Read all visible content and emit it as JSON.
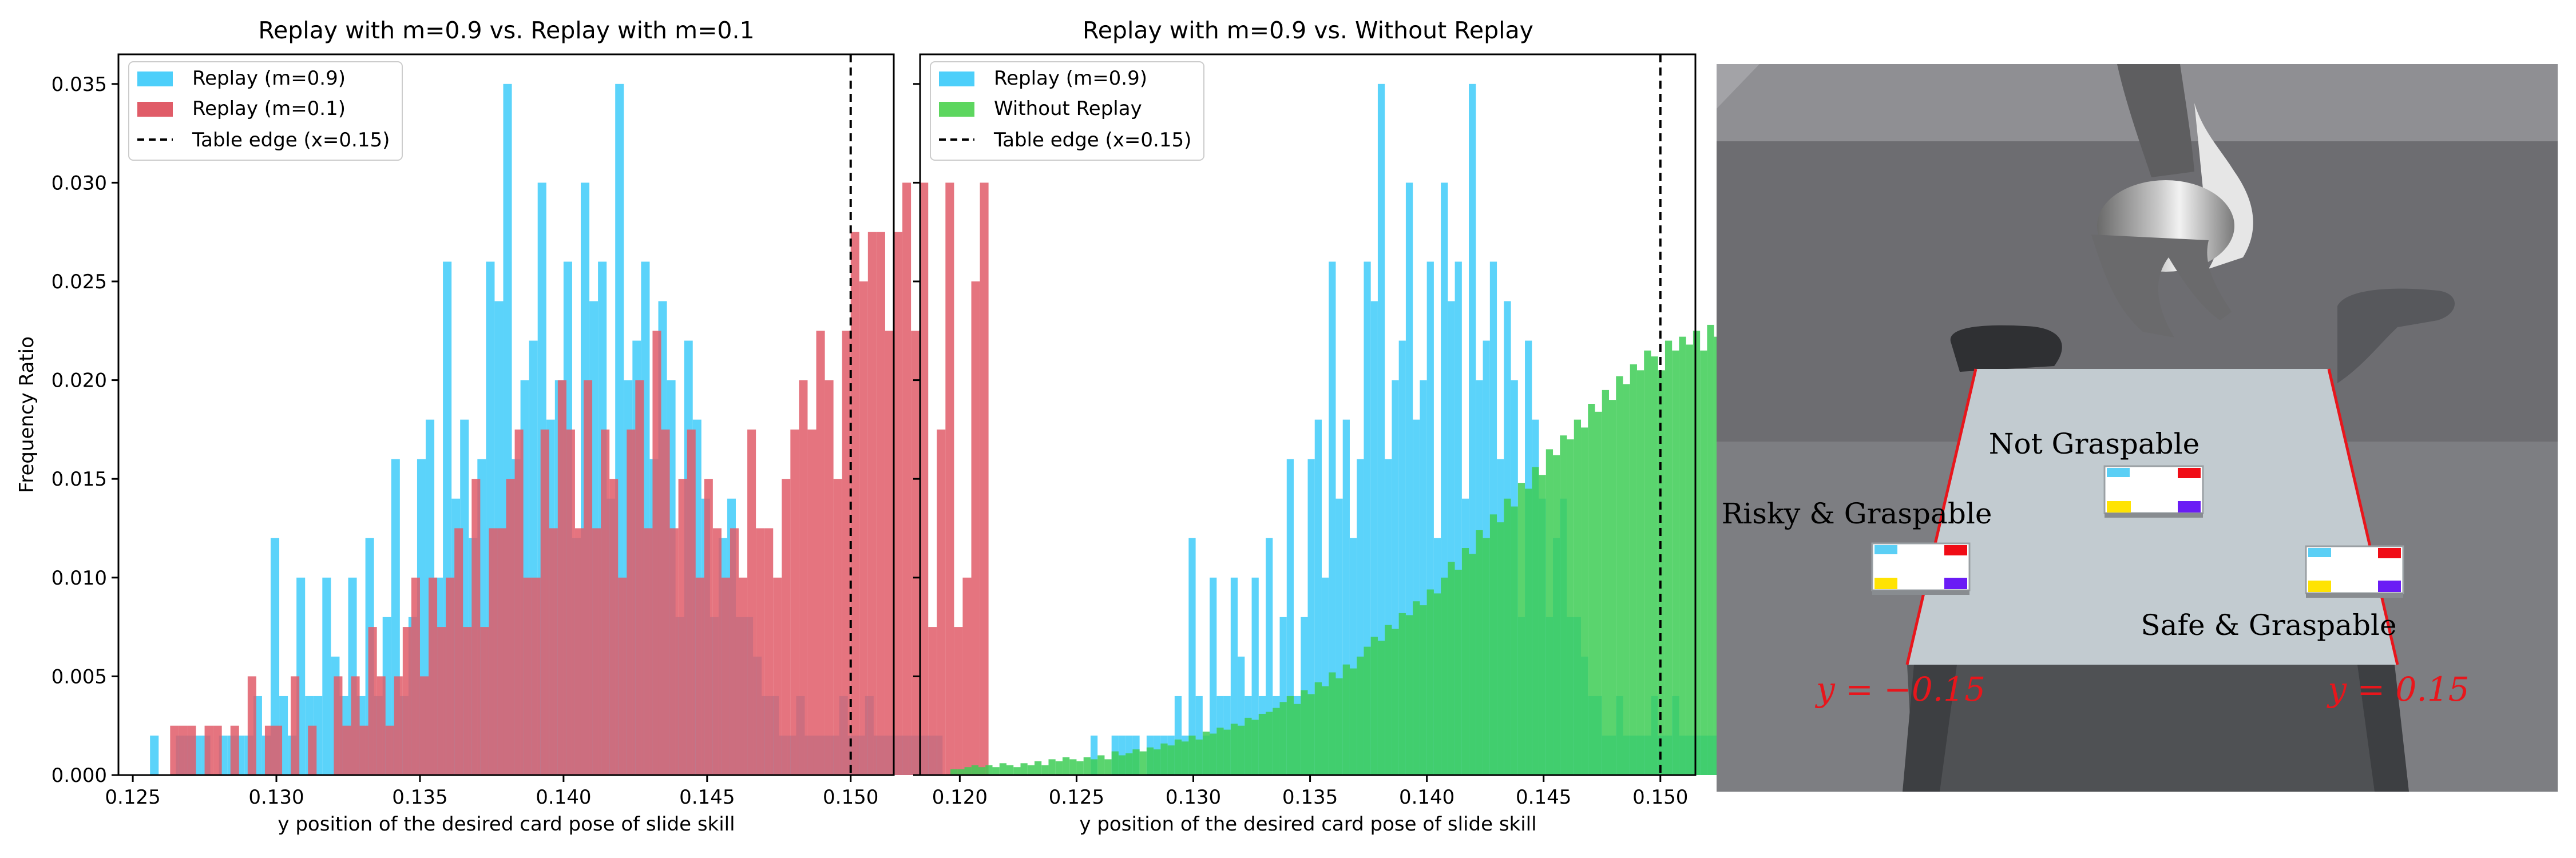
{
  "chart_data": [
    {
      "type": "bar",
      "title": "Replay with m=0.9 vs. Replay with m=0.1",
      "xlabel": "y position of the desired card pose of slide skill",
      "ylabel": "Frequency Ratio",
      "xlim": [
        0.1245,
        0.1515
      ],
      "ylim": [
        0,
        0.0365
      ],
      "xticks": [
        "0.125",
        "0.130",
        "0.135",
        "0.140",
        "0.145",
        "0.150"
      ],
      "yticks": [
        "0.000",
        "0.005",
        "0.010",
        "0.015",
        "0.020",
        "0.025",
        "0.030",
        "0.035"
      ],
      "grid": false,
      "legend_position": "top-left",
      "bin_width": 0.0003,
      "series": [
        {
          "name": "Replay (m=0.9)",
          "color": "#4DCFFA",
          "x_start": 0.1256,
          "values": [
            0.002,
            0,
            0,
            0.002,
            0.002,
            0.002,
            0.002,
            0,
            0.002,
            0.002,
            0.002,
            0.002,
            0.004,
            0.002,
            0.012,
            0.004,
            0.002,
            0.01,
            0.004,
            0.004,
            0.01,
            0.006,
            0.004,
            0.01,
            0.004,
            0.012,
            0.004,
            0.008,
            0.016,
            0.004,
            0.008,
            0.016,
            0.018,
            0.01,
            0.026,
            0.014,
            0.018,
            0.012,
            0.016,
            0.026,
            0.024,
            0.035,
            0.016,
            0.02,
            0.022,
            0.03,
            0.018,
            0.02,
            0.026,
            0.012,
            0.03,
            0.024,
            0.026,
            0.014,
            0.035,
            0.02,
            0.022,
            0.026,
            0.016,
            0.024,
            0.02,
            0.008,
            0.022,
            0.018,
            0.014,
            0.008,
            0.012,
            0.014,
            0.008,
            0.008,
            0.006,
            0.004,
            0.004,
            0.002,
            0.002,
            0.004,
            0.002,
            0.002,
            0.002,
            0.002,
            0.004,
            0.002,
            0.002,
            0.004,
            0.002,
            0.002,
            0.002,
            0.002,
            0.002,
            0.002,
            0.002,
            0.002
          ]
        },
        {
          "name": "Replay (m=0.1)",
          "color": "#E05C68",
          "x_start": 0.1263,
          "values": [
            0.0025,
            0.0025,
            0.0025,
            0,
            0.0025,
            0.0025,
            0,
            0.0025,
            0,
            0.005,
            0,
            0.0025,
            0.0025,
            0,
            0.005,
            0,
            0.0025,
            0,
            0,
            0.005,
            0.0025,
            0.005,
            0.0025,
            0.0075,
            0.005,
            0.0025,
            0.005,
            0.0075,
            0.01,
            0.005,
            0.01,
            0.0075,
            0.01,
            0.0125,
            0.0075,
            0.015,
            0.0075,
            0.0125,
            0.0125,
            0.015,
            0.0175,
            0.01,
            0.01,
            0.0175,
            0.0125,
            0.02,
            0.0175,
            0.0125,
            0.02,
            0.0125,
            0.0175,
            0.015,
            0.01,
            0.0175,
            0.02,
            0.0125,
            0.0225,
            0.0175,
            0.0125,
            0.015,
            0.0175,
            0.01,
            0.015,
            0.0125,
            0.01,
            0.0125,
            0.01,
            0.0175,
            0.0125,
            0.0125,
            0.01,
            0.015,
            0.0175,
            0.02,
            0.0175,
            0.0225,
            0.02,
            0.015,
            0.0225,
            0.0275,
            0.025,
            0.0275,
            0.0275,
            0.0225,
            0.0275,
            0.03,
            0.0225,
            0.03,
            0.0075,
            0.0175,
            0.03,
            0.0075,
            0.01,
            0.025,
            0.03
          ]
        }
      ],
      "annotations": [
        {
          "type": "vline",
          "x": 0.15,
          "style": "dashed",
          "color": "#000000",
          "label": "Table edge (x=0.15)"
        }
      ]
    },
    {
      "type": "bar",
      "title": "Replay with m=0.9 vs. Without Replay",
      "xlabel": "y position of the desired card pose of slide skill",
      "ylabel": "",
      "xlim": [
        0.1183,
        0.1515
      ],
      "ylim": [
        0,
        0.0365
      ],
      "xticks": [
        "0.120",
        "0.125",
        "0.130",
        "0.135",
        "0.140",
        "0.145",
        "0.150"
      ],
      "grid": false,
      "legend_position": "top-left",
      "bin_width": 0.0003,
      "series": [
        {
          "name": "Replay (m=0.9)",
          "color": "#4DCFFA",
          "x_start": 0.1256,
          "values": [
            0.002,
            0,
            0,
            0.002,
            0.002,
            0.002,
            0.002,
            0,
            0.002,
            0.002,
            0.002,
            0.002,
            0.004,
            0.002,
            0.012,
            0.004,
            0.002,
            0.01,
            0.004,
            0.004,
            0.01,
            0.006,
            0.004,
            0.01,
            0.004,
            0.012,
            0.004,
            0.008,
            0.016,
            0.004,
            0.008,
            0.016,
            0.018,
            0.01,
            0.026,
            0.014,
            0.018,
            0.012,
            0.016,
            0.026,
            0.024,
            0.035,
            0.016,
            0.02,
            0.022,
            0.03,
            0.018,
            0.02,
            0.026,
            0.012,
            0.03,
            0.024,
            0.026,
            0.014,
            0.035,
            0.02,
            0.022,
            0.026,
            0.016,
            0.024,
            0.02,
            0.008,
            0.022,
            0.018,
            0.014,
            0.008,
            0.012,
            0.014,
            0.008,
            0.008,
            0.006,
            0.004,
            0.004,
            0.002,
            0.002,
            0.004,
            0.002,
            0.002,
            0.002,
            0.002,
            0.004,
            0.002,
            0.002,
            0.004,
            0.002,
            0.002,
            0.002,
            0.002,
            0.002,
            0.002,
            0.002,
            0.002
          ]
        },
        {
          "name": "Without Replay",
          "color": "#3DCC55",
          "x_start": 0.1196,
          "values": [
            0.0003,
            0.0003,
            0.0004,
            0.0005,
            0.0004,
            0.0005,
            0.0004,
            0.0006,
            0.0005,
            0.0004,
            0.0006,
            0.0005,
            0.0007,
            0.0005,
            0.0008,
            0.0007,
            0.0009,
            0.0008,
            0.0007,
            0.0009,
            0.0008,
            0.001,
            0.0008,
            0.0012,
            0.001,
            0.0011,
            0.0013,
            0.0012,
            0.0014,
            0.0013,
            0.0016,
            0.0015,
            0.0018,
            0.0017,
            0.002,
            0.0018,
            0.0022,
            0.0021,
            0.0024,
            0.0023,
            0.0026,
            0.0025,
            0.0029,
            0.0028,
            0.0031,
            0.0032,
            0.0034,
            0.0037,
            0.004,
            0.0036,
            0.0043,
            0.0041,
            0.0047,
            0.0045,
            0.0052,
            0.0049,
            0.0056,
            0.0054,
            0.006,
            0.0065,
            0.007,
            0.0068,
            0.0076,
            0.0074,
            0.0082,
            0.0081,
            0.0088,
            0.0086,
            0.0094,
            0.0092,
            0.01,
            0.0108,
            0.0104,
            0.0115,
            0.0112,
            0.0124,
            0.012,
            0.0132,
            0.0128,
            0.014,
            0.0136,
            0.0148,
            0.0145,
            0.0156,
            0.0152,
            0.0165,
            0.0162,
            0.0172,
            0.017,
            0.018,
            0.0176,
            0.0188,
            0.0184,
            0.0195,
            0.019,
            0.0202,
            0.0198,
            0.0208,
            0.0205,
            0.0215,
            0.0212,
            0.0205,
            0.022,
            0.0215,
            0.0222,
            0.0218,
            0.0225,
            0.0215,
            0.0228,
            0.0222,
            0.0212,
            0.0232,
            0.0218,
            0.0228,
            0.0222,
            0.0235,
            0.0215,
            0.0228,
            0.0238,
            0.0222,
            0.0232,
            0.0238,
            0.0236,
            0.0238
          ]
        }
      ],
      "annotations": [
        {
          "type": "vline",
          "x": 0.15,
          "style": "dashed",
          "color": "#000000",
          "label": "Table edge (x=0.15)"
        }
      ]
    }
  ],
  "panel3": {
    "labels": {
      "not_graspable": "Not Graspable",
      "risky": "Risky & Graspable",
      "safe": "Safe & Graspable",
      "y_left": "y = −0.15",
      "y_right": "y = 0.15"
    },
    "colors": {
      "edge_line": "#E8161C",
      "table_top": "#C2CBD0",
      "card_corner_cyan": "#5BCFF5",
      "card_corner_red": "#F00C16",
      "card_corner_yellow": "#FFE302",
      "card_corner_purple": "#6A1CF5"
    }
  }
}
